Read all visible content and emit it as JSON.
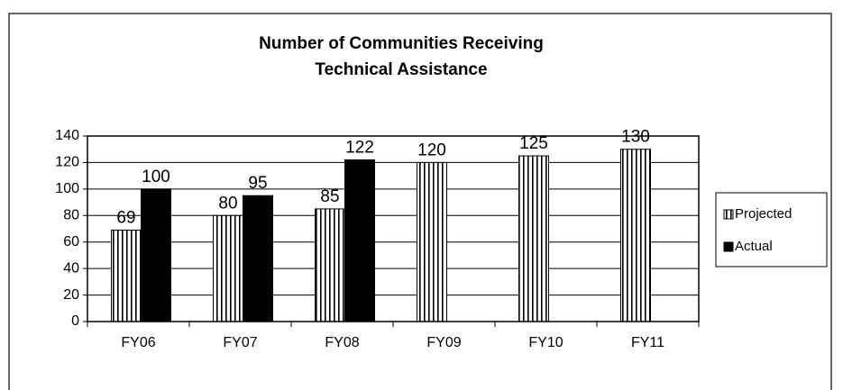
{
  "chart_data": {
    "type": "bar",
    "title": [
      "Number of Communities Receiving",
      "Technical Assistance"
    ],
    "categories": [
      "FY06",
      "FY07",
      "FY08",
      "FY09",
      "FY10",
      "FY11"
    ],
    "series": [
      {
        "name": "Projected",
        "color": "#000000",
        "pattern": "vertical-lines",
        "values": [
          69,
          80,
          85,
          120,
          125,
          130
        ]
      },
      {
        "name": "Actual",
        "color": "#000000",
        "values": [
          100,
          95,
          122,
          null,
          null,
          null
        ]
      }
    ],
    "ylim": [
      0,
      140
    ],
    "yticks": [
      0,
      20,
      40,
      60,
      80,
      100,
      120,
      140
    ],
    "grid": true,
    "legend": "right"
  }
}
